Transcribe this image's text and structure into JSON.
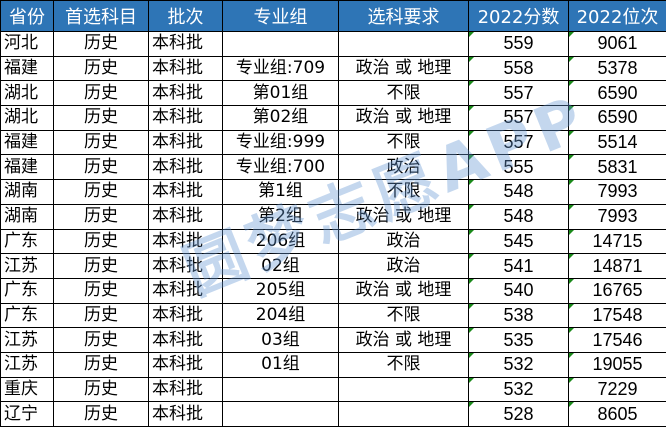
{
  "header_color": "#2e75b6",
  "columns": [
    "省份",
    "首选科目",
    "批次",
    "专业组",
    "选科要求",
    "2022分数",
    "2022位次"
  ],
  "rows": [
    [
      "河北",
      "历史",
      "本科批",
      "",
      "",
      "559",
      "9061"
    ],
    [
      "福建",
      "历史",
      "本科批",
      "专业组:709",
      "政治 或 地理",
      "558",
      "5378"
    ],
    [
      "湖北",
      "历史",
      "本科批",
      "第01组",
      "不限",
      "557",
      "6590"
    ],
    [
      "湖北",
      "历史",
      "本科批",
      "第02组",
      "政治 或 地理",
      "557",
      "6590"
    ],
    [
      "福建",
      "历史",
      "本科批",
      "专业组:999",
      "不限",
      "557",
      "5514"
    ],
    [
      "福建",
      "历史",
      "本科批",
      "专业组:700",
      "政治",
      "555",
      "5831"
    ],
    [
      "湖南",
      "历史",
      "本科批",
      "第1组",
      "不限",
      "548",
      "7993"
    ],
    [
      "湖南",
      "历史",
      "本科批",
      "第2组",
      "政治 或 地理",
      "548",
      "7993"
    ],
    [
      "广东",
      "历史",
      "本科批",
      "206组",
      "政治",
      "545",
      "14715"
    ],
    [
      "江苏",
      "历史",
      "本科批",
      "02组",
      "政治",
      "541",
      "14871"
    ],
    [
      "广东",
      "历史",
      "本科批",
      "205组",
      "政治 或 地理",
      "540",
      "16765"
    ],
    [
      "广东",
      "历史",
      "本科批",
      "204组",
      "不限",
      "538",
      "17548"
    ],
    [
      "江苏",
      "历史",
      "本科批",
      "03组",
      "政治 或 地理",
      "535",
      "17546"
    ],
    [
      "江苏",
      "历史",
      "本科批",
      "01组",
      "不限",
      "532",
      "19055"
    ],
    [
      "重庆",
      "历史",
      "本科批",
      "",
      "",
      "532",
      "7229"
    ],
    [
      "辽宁",
      "历史",
      "本科批",
      "",
      "",
      "528",
      "8605"
    ]
  ],
  "watermark": "圆梦志愿APP"
}
